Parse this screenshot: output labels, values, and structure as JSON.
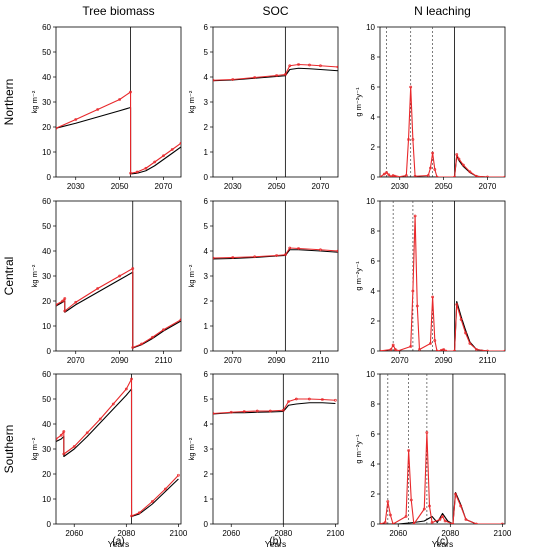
{
  "columns": [
    {
      "title": "Tree biomass",
      "label": "(a)",
      "ylabel": "kg m⁻²",
      "ylim": [
        0,
        60
      ],
      "yticks": [
        0,
        10,
        20,
        30,
        40,
        50,
        60
      ]
    },
    {
      "title": "SOC",
      "label": "(b)",
      "ylabel": "kg m⁻²",
      "ylim": [
        0,
        6
      ],
      "yticks": [
        0,
        1,
        2,
        3,
        4,
        5,
        6
      ]
    },
    {
      "title": "N leaching",
      "label": "(c)",
      "ylabel": "g m⁻²y⁻¹",
      "ylim": [
        0,
        10
      ],
      "yticks": [
        0,
        2,
        4,
        6,
        8,
        10
      ]
    }
  ],
  "rows": [
    {
      "title": "Northern",
      "xlim": [
        2021,
        2078
      ],
      "xticks": [
        2030,
        2050,
        2070
      ],
      "xlabel": ""
    },
    {
      "title": "Central",
      "xlim": [
        2061,
        2118
      ],
      "xticks": [
        2070,
        2090,
        2110
      ],
      "xlabel": ""
    },
    {
      "title": "Southern",
      "xlim": [
        2053,
        2101
      ],
      "xticks": [
        2060,
        2080,
        2100
      ],
      "xlabel": "Years"
    }
  ],
  "colors": {
    "baseline": "#000000",
    "scenario": "#e8282b",
    "axis": "#000000"
  },
  "chart_data": [
    {
      "row": 0,
      "col": 0,
      "type": "line",
      "vline": 2055,
      "series": [
        {
          "key": "black",
          "x": [
            2021,
            2030,
            2040,
            2050,
            2055,
            2055.01,
            2058,
            2062,
            2066,
            2070,
            2074,
            2078
          ],
          "y": [
            19.5,
            21.5,
            24,
            26.5,
            27.8,
            1.2,
            1.5,
            2.5,
            4.5,
            7,
            9.5,
            12
          ]
        },
        {
          "key": "red",
          "x": [
            2021,
            2030,
            2040,
            2050,
            2055,
            2055.01,
            2058,
            2062,
            2066,
            2070,
            2074,
            2078
          ],
          "y": [
            19.5,
            23,
            27,
            31,
            34,
            1.5,
            2,
            3.5,
            6,
            8.5,
            11,
            13.5
          ]
        }
      ]
    },
    {
      "row": 0,
      "col": 1,
      "type": "line",
      "vline": 2054,
      "series": [
        {
          "key": "black",
          "x": [
            2021,
            2030,
            2040,
            2050,
            2054,
            2056,
            2060,
            2065,
            2070,
            2078
          ],
          "y": [
            3.85,
            3.88,
            3.95,
            4.02,
            4.05,
            4.3,
            4.35,
            4.33,
            4.3,
            4.25
          ]
        },
        {
          "key": "red",
          "x": [
            2021,
            2030,
            2040,
            2050,
            2054,
            2056,
            2060,
            2065,
            2070,
            2078
          ],
          "y": [
            3.87,
            3.9,
            3.98,
            4.06,
            4.1,
            4.45,
            4.5,
            4.48,
            4.45,
            4.4
          ]
        }
      ]
    },
    {
      "row": 0,
      "col": 2,
      "type": "line",
      "vline": 2055,
      "dashed_vlines": [
        2024,
        2035,
        2045
      ],
      "series": [
        {
          "key": "black",
          "x": [
            2021,
            2030,
            2040,
            2050,
            2055,
            2056,
            2057,
            2059,
            2062,
            2065,
            2070,
            2078
          ],
          "y": [
            0,
            0,
            0,
            0,
            0,
            1.4,
            1.1,
            0.7,
            0.3,
            0.05,
            0,
            0
          ]
        },
        {
          "key": "red",
          "x": [
            2021,
            2023,
            2024,
            2025,
            2026,
            2027,
            2028,
            2029,
            2033,
            2034,
            2035,
            2036,
            2037,
            2043,
            2044,
            2045,
            2046,
            2047,
            2055,
            2056,
            2057,
            2059,
            2062,
            2065,
            2070,
            2078
          ],
          "y": [
            0,
            0.2,
            0.3,
            0.15,
            0.02,
            0.1,
            0.05,
            0,
            0.1,
            2.5,
            6,
            2.5,
            0.05,
            0.1,
            0.6,
            1.6,
            0.5,
            0,
            0,
            1.5,
            1.2,
            0.8,
            0.35,
            0.05,
            0,
            0
          ]
        }
      ]
    },
    {
      "row": 1,
      "col": 0,
      "type": "line",
      "vline": 2096,
      "series": [
        {
          "key": "black",
          "x": [
            2061,
            2064,
            2065,
            2065.01,
            2070,
            2080,
            2090,
            2096,
            2096.01,
            2100,
            2105,
            2110,
            2118
          ],
          "y": [
            18,
            19.5,
            20,
            15.5,
            18.5,
            23.5,
            28.5,
            31.5,
            1.2,
            2.5,
            5,
            8,
            12
          ]
        },
        {
          "key": "red",
          "x": [
            2061,
            2064,
            2065,
            2065.01,
            2070,
            2080,
            2090,
            2096,
            2096.01,
            2100,
            2105,
            2110,
            2118
          ],
          "y": [
            18.5,
            20,
            21,
            16,
            19.5,
            25,
            30,
            33,
            1.4,
            2.8,
            5.5,
            8.5,
            12.5
          ]
        }
      ]
    },
    {
      "row": 1,
      "col": 1,
      "type": "line",
      "vline": 2094,
      "series": [
        {
          "key": "black",
          "x": [
            2061,
            2070,
            2080,
            2090,
            2094,
            2096,
            2100,
            2110,
            2118
          ],
          "y": [
            3.68,
            3.7,
            3.74,
            3.8,
            3.82,
            4.05,
            4.05,
            4.0,
            3.95
          ]
        },
        {
          "key": "red",
          "x": [
            2061,
            2070,
            2080,
            2090,
            2094,
            2096,
            2100,
            2110,
            2118
          ],
          "y": [
            3.72,
            3.74,
            3.77,
            3.82,
            3.85,
            4.12,
            4.1,
            4.05,
            4.0
          ]
        }
      ]
    },
    {
      "row": 1,
      "col": 2,
      "type": "line",
      "vline": 2095,
      "dashed_vlines": [
        2067,
        2076,
        2085
      ],
      "series": [
        {
          "key": "black",
          "x": [
            2061,
            2070,
            2080,
            2090,
            2095,
            2096,
            2098,
            2100,
            2102,
            2105,
            2110,
            2118
          ],
          "y": [
            0,
            0,
            0,
            0,
            0,
            3.3,
            2.3,
            1.4,
            0.6,
            0.1,
            0,
            0
          ]
        },
        {
          "key": "red",
          "x": [
            2061,
            2066,
            2067,
            2068,
            2069,
            2075,
            2076,
            2077,
            2078,
            2079,
            2084,
            2085,
            2086,
            2087,
            2089,
            2090,
            2091,
            2095,
            2096,
            2098,
            2100,
            2102,
            2105,
            2110,
            2118
          ],
          "y": [
            0,
            0.1,
            0.4,
            0.1,
            0,
            0.3,
            4,
            9,
            3,
            0.1,
            0.5,
            3.6,
            0.7,
            0,
            0.05,
            0.1,
            0,
            0,
            3.1,
            2.1,
            1.2,
            0.5,
            0.1,
            0,
            0
          ]
        }
      ]
    },
    {
      "row": 2,
      "col": 0,
      "type": "line",
      "vline": 2082,
      "series": [
        {
          "key": "black",
          "x": [
            2053,
            2055,
            2056,
            2056.01,
            2060,
            2065,
            2070,
            2075,
            2080,
            2082,
            2082.01,
            2085,
            2090,
            2095,
            2100
          ],
          "y": [
            33,
            34,
            35,
            27,
            30,
            35,
            40.5,
            46,
            51.5,
            54,
            3,
            4,
            8,
            13,
            18
          ]
        },
        {
          "key": "red",
          "x": [
            2053,
            2055,
            2056,
            2056.01,
            2060,
            2065,
            2070,
            2075,
            2080,
            2082,
            2082.01,
            2085,
            2090,
            2095,
            2100
          ],
          "y": [
            34,
            35.5,
            37,
            28,
            31,
            36.5,
            42,
            48,
            54,
            58,
            3.2,
            4.5,
            9,
            14,
            19.5
          ]
        }
      ]
    },
    {
      "row": 2,
      "col": 1,
      "type": "line",
      "vline": 2080,
      "series": [
        {
          "key": "black",
          "x": [
            2053,
            2060,
            2065,
            2070,
            2075,
            2080,
            2082,
            2085,
            2090,
            2095,
            2100
          ],
          "y": [
            4.4,
            4.45,
            4.45,
            4.47,
            4.48,
            4.5,
            4.75,
            4.8,
            4.85,
            4.85,
            4.82
          ]
        },
        {
          "key": "red",
          "x": [
            2053,
            2060,
            2065,
            2070,
            2075,
            2080,
            2082,
            2085,
            2090,
            2095,
            2100
          ],
          "y": [
            4.42,
            4.47,
            4.5,
            4.52,
            4.52,
            4.55,
            4.9,
            5.0,
            5.0,
            4.98,
            4.95
          ]
        }
      ]
    },
    {
      "row": 2,
      "col": 2,
      "type": "line",
      "vline": 2081,
      "dashed_vlines": [
        2056,
        2064,
        2071
      ],
      "series": [
        {
          "key": "black",
          "x": [
            2053,
            2060,
            2066,
            2070,
            2073,
            2075,
            2077,
            2079,
            2081,
            2082,
            2084,
            2086,
            2090,
            2100
          ],
          "y": [
            0,
            0,
            0.1,
            0.2,
            0.5,
            0.1,
            0.7,
            0.2,
            0,
            2.1,
            1.3,
            0.3,
            0,
            0
          ]
        },
        {
          "key": "red",
          "x": [
            2053,
            2055,
            2056,
            2057,
            2058,
            2063,
            2064,
            2065,
            2066,
            2070,
            2071,
            2072,
            2073,
            2076,
            2077,
            2078,
            2081,
            2082,
            2084,
            2086,
            2090,
            2100
          ],
          "y": [
            0,
            0.1,
            1.5,
            0.6,
            0,
            0.5,
            4.9,
            1.6,
            0,
            1,
            6.1,
            1.2,
            0.1,
            0.3,
            0.5,
            0.2,
            0,
            2.0,
            1.2,
            0.3,
            0,
            0
          ]
        }
      ]
    }
  ]
}
